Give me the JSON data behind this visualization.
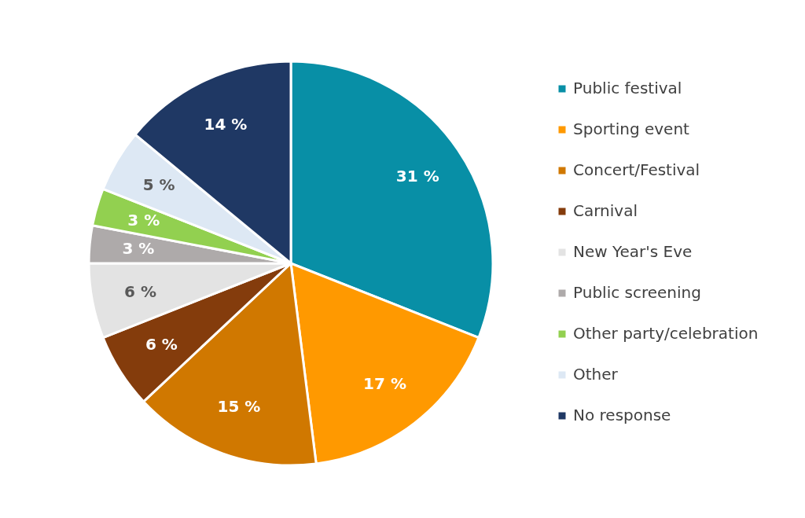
{
  "chart_data": {
    "type": "pie",
    "categories": [
      "Public festival",
      "Sporting event",
      "Concert/Festival",
      "Carnival",
      "New Year's Eve",
      "Public screening",
      "Other party/celebration",
      "Other",
      "No response"
    ],
    "values": [
      31,
      17,
      15,
      6,
      6,
      3,
      3,
      5,
      14
    ],
    "value_labels": [
      "31 %",
      "17 %",
      "15 %",
      "6 %",
      "6 %",
      "3 %",
      "3 %",
      "5 %",
      "14 %"
    ],
    "colors": [
      "#088fa6",
      "#ff9900",
      "#d07800",
      "#843c0c",
      "#e3e3e3",
      "#aeaaaa",
      "#92d050",
      "#dde8f4",
      "#1f3864"
    ],
    "legend": "right"
  }
}
